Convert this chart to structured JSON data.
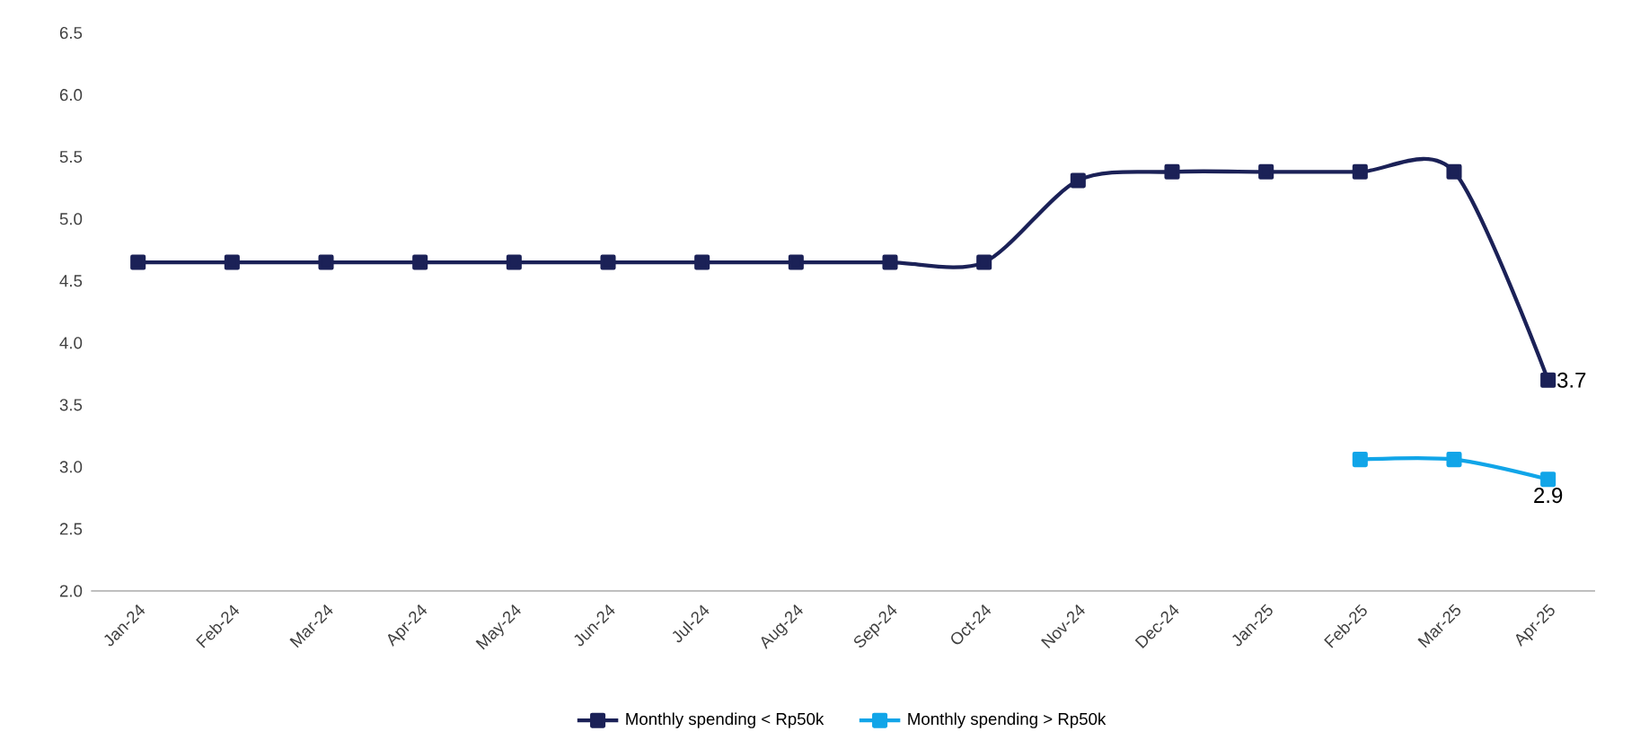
{
  "chart_data": {
    "type": "line",
    "categories": [
      "Jan-24",
      "Feb-24",
      "Mar-24",
      "Apr-24",
      "May-24",
      "Jun-24",
      "Jul-24",
      "Aug-24",
      "Sep-24",
      "Oct-24",
      "Nov-24",
      "Dec-24",
      "Jan-25",
      "Feb-25",
      "Mar-25",
      "Apr-25"
    ],
    "series": [
      {
        "name": "Monthly spending < Rp50k",
        "color": "#1b2157",
        "values": [
          4.65,
          4.65,
          4.65,
          4.65,
          4.65,
          4.65,
          4.65,
          4.65,
          4.65,
          4.65,
          5.31,
          5.38,
          5.38,
          5.38,
          5.38,
          3.7
        ],
        "value_labels": [
          null,
          null,
          null,
          null,
          null,
          null,
          null,
          null,
          null,
          null,
          null,
          null,
          null,
          null,
          null,
          "3.7"
        ]
      },
      {
        "name": "Monthly spending > Rp50k",
        "color": "#11a5e8",
        "values": [
          null,
          null,
          null,
          null,
          null,
          null,
          null,
          null,
          null,
          null,
          null,
          null,
          null,
          3.06,
          3.06,
          2.9
        ],
        "value_labels": [
          null,
          null,
          null,
          null,
          null,
          null,
          null,
          null,
          null,
          null,
          null,
          null,
          null,
          null,
          null,
          "2.9"
        ]
      }
    ],
    "ylim": [
      2.0,
      6.5
    ],
    "yticks": [
      {
        "value": 2.0,
        "label": "2.0"
      },
      {
        "value": 2.5,
        "label": "2.5"
      },
      {
        "value": 3.0,
        "label": "3.0"
      },
      {
        "value": 3.5,
        "label": "3.5"
      },
      {
        "value": 4.0,
        "label": "4.0"
      },
      {
        "value": 4.5,
        "label": "4.5"
      },
      {
        "value": 5.0,
        "label": "5.0"
      },
      {
        "value": 5.5,
        "label": "5.5"
      },
      {
        "value": 6.0,
        "label": "6.0"
      },
      {
        "value": 6.5,
        "label": "6.5"
      }
    ],
    "marker": "square",
    "line_style": "solid",
    "legend": "bottom",
    "grid": false
  }
}
